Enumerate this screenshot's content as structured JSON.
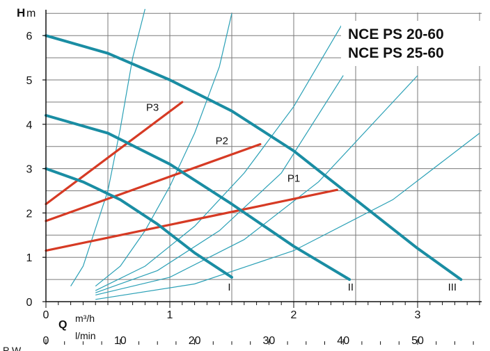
{
  "chart_data": {
    "type": "line",
    "title_lines": [
      "NCE PS 20-60",
      "NCE PS 25-60"
    ],
    "ylabel": "H",
    "yunit": "m",
    "xlabel": "Q",
    "xunit_m3h": "m³/h",
    "xunit_lmin": "l/min",
    "bottom_label": "P W",
    "xlim": [
      0,
      3.5
    ],
    "ylim": [
      0,
      6.5
    ],
    "lmin_lim": [
      0,
      58
    ],
    "y_ticks": [
      0,
      1,
      2,
      3,
      4,
      5,
      6
    ],
    "y_tick_labels": [
      "0",
      "1",
      "2",
      "3",
      "4",
      "5",
      "6"
    ],
    "x_ticks": [
      0,
      1,
      2,
      3
    ],
    "x_tick_labels": [
      "0",
      "1",
      "2",
      "3"
    ],
    "lmin_ticks": [
      0,
      10,
      20,
      30,
      40,
      50
    ],
    "lmin_tick_labels": [
      "0",
      "10",
      "20",
      "30",
      "40",
      "50"
    ],
    "grid": true,
    "pump_curves": [
      {
        "name": "I",
        "color": "#1a8da3",
        "x": [
          0,
          0.3,
          0.6,
          0.9,
          1.2,
          1.5
        ],
        "y": [
          3.0,
          2.7,
          2.3,
          1.75,
          1.1,
          0.55
        ]
      },
      {
        "name": "II",
        "color": "#1a8da3",
        "x": [
          0,
          0.5,
          1.0,
          1.5,
          2.0,
          2.45
        ],
        "y": [
          4.2,
          3.8,
          3.1,
          2.2,
          1.25,
          0.5
        ]
      },
      {
        "name": "III",
        "color": "#1a8da3",
        "x": [
          0,
          0.5,
          1.0,
          1.5,
          2.0,
          2.5,
          3.0,
          3.35
        ],
        "y": [
          6.0,
          5.6,
          5.0,
          4.3,
          3.4,
          2.3,
          1.2,
          0.5
        ]
      }
    ],
    "power_lines": [
      {
        "name": "P1",
        "color": "#d63a24",
        "x": [
          0,
          2.35
        ],
        "y": [
          1.15,
          2.52
        ]
      },
      {
        "name": "P2",
        "color": "#d63a24",
        "x": [
          0,
          1.73
        ],
        "y": [
          1.82,
          3.55
        ]
      },
      {
        "name": "P3",
        "color": "#d63a24",
        "x": [
          0,
          1.1
        ],
        "y": [
          2.2,
          4.5
        ]
      }
    ],
    "system_curves": [
      {
        "x": [
          0.2,
          0.3,
          0.5,
          0.6,
          0.7,
          0.8
        ],
        "y": [
          0.35,
          0.8,
          2.5,
          3.9,
          5.5,
          6.6
        ]
      },
      {
        "x": [
          0.4,
          0.6,
          0.8,
          1.0,
          1.2,
          1.4,
          1.5
        ],
        "y": [
          0.35,
          0.8,
          1.6,
          2.6,
          3.8,
          5.3,
          6.5
        ]
      },
      {
        "x": [
          0.4,
          0.8,
          1.2,
          1.6,
          2.0,
          2.4
        ],
        "y": [
          0.25,
          0.8,
          1.7,
          2.9,
          4.4,
          6.3
        ]
      },
      {
        "x": [
          0.4,
          0.9,
          1.4,
          1.9,
          2.4
        ],
        "y": [
          0.2,
          0.7,
          1.6,
          2.9,
          5.1
        ]
      },
      {
        "x": [
          0.4,
          1.0,
          1.6,
          2.2,
          2.8,
          3.0
        ],
        "y": [
          0.15,
          0.55,
          1.4,
          2.7,
          4.5,
          5.1
        ]
      },
      {
        "x": [
          0.4,
          1.2,
          2.0,
          2.8,
          3.5
        ],
        "y": [
          0.05,
          0.4,
          1.15,
          2.3,
          3.8
        ]
      }
    ],
    "curve_labels": [
      {
        "text": "I",
        "x": 1.48,
        "y": 0.25
      },
      {
        "text": "II",
        "x": 2.46,
        "y": 0.25
      },
      {
        "text": "III",
        "x": 3.28,
        "y": 0.25
      },
      {
        "text": "P1",
        "x": 2.0,
        "y": 2.7
      },
      {
        "text": "P2",
        "x": 1.42,
        "y": 3.55
      },
      {
        "text": "P3",
        "x": 0.86,
        "y": 4.3
      }
    ]
  }
}
